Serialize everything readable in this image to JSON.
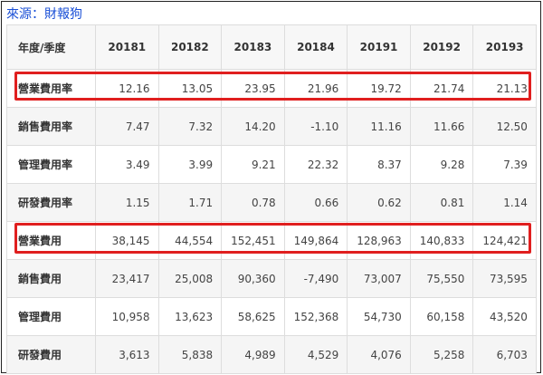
{
  "source_label": "來源：財報狗",
  "accent_colors": {
    "highlight_border": "#e01f1f",
    "source_text": "#1a4fd6"
  },
  "table": {
    "header_label": "年度/季度",
    "columns": [
      "20181",
      "20182",
      "20183",
      "20184",
      "20191",
      "20192",
      "20193"
    ],
    "rows": [
      {
        "label": "營業費用率",
        "values": [
          "12.16",
          "13.05",
          "23.95",
          "21.96",
          "19.72",
          "21.74",
          "21.13"
        ],
        "highlighted": true
      },
      {
        "label": "銷售費用率",
        "values": [
          "7.47",
          "7.32",
          "14.20",
          "-1.10",
          "11.16",
          "11.66",
          "12.50"
        ],
        "highlighted": false
      },
      {
        "label": "管理費用率",
        "values": [
          "3.49",
          "3.99",
          "9.21",
          "22.32",
          "8.37",
          "9.28",
          "7.39"
        ],
        "highlighted": false
      },
      {
        "label": "研發費用率",
        "values": [
          "1.15",
          "1.71",
          "0.78",
          "0.66",
          "0.62",
          "0.81",
          "1.14"
        ],
        "highlighted": false
      },
      {
        "label": "營業費用",
        "values": [
          "38,145",
          "44,554",
          "152,451",
          "149,864",
          "128,963",
          "140,833",
          "124,421"
        ],
        "highlighted": true
      },
      {
        "label": "銷售費用",
        "values": [
          "23,417",
          "25,008",
          "90,360",
          "-7,490",
          "73,007",
          "75,550",
          "73,595"
        ],
        "highlighted": false
      },
      {
        "label": "管理費用",
        "values": [
          "10,958",
          "13,623",
          "58,625",
          "152,368",
          "54,730",
          "60,158",
          "43,520"
        ],
        "highlighted": false
      },
      {
        "label": "研發費用",
        "values": [
          "3,613",
          "5,838",
          "4,989",
          "4,529",
          "4,076",
          "5,258",
          "6,703"
        ],
        "highlighted": false
      }
    ]
  }
}
